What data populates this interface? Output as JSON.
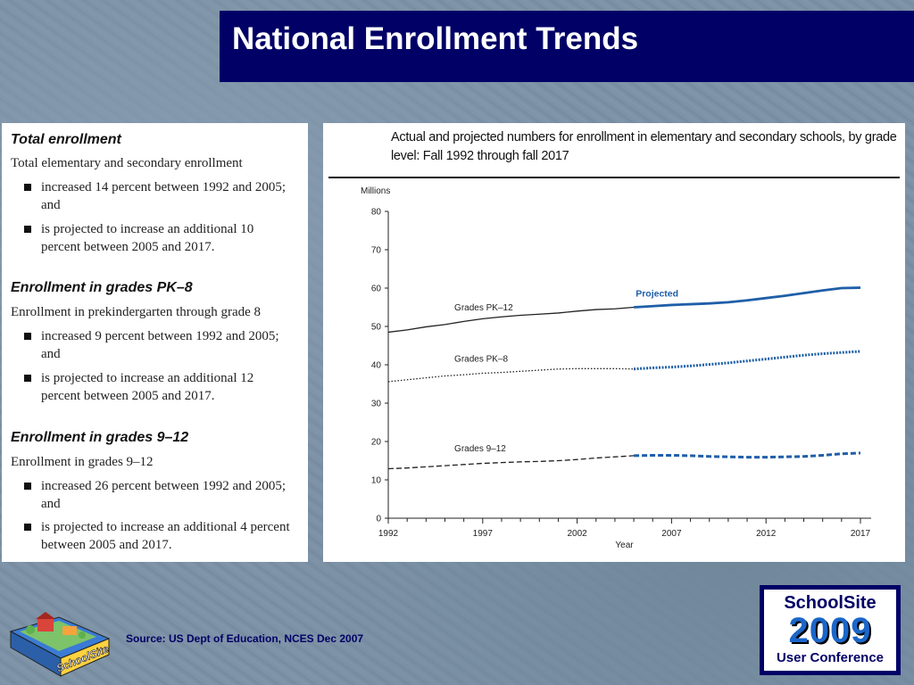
{
  "slide": {
    "title": "National Enrollment Trends",
    "source": "Source:  US Dept of Education, NCES  Dec 2007"
  },
  "left_panel": {
    "sections": [
      {
        "heading": "Total enrollment",
        "subtitle": "Total elementary and secondary enrollment",
        "bullets": [
          "increased 14 percent between 1992 and 2005; and",
          "is projected to increase an additional 10 percent between 2005 and 2017."
        ]
      },
      {
        "heading": "Enrollment in grades PK–8",
        "subtitle": "Enrollment in prekindergarten through grade 8",
        "bullets": [
          "increased 9 percent between 1992 and 2005; and",
          "is projected to increase an additional 12 percent between 2005 and 2017."
        ]
      },
      {
        "heading": "Enrollment in grades 9–12",
        "subtitle": "Enrollment in grades 9–12",
        "bullets": [
          "increased 26 percent between 1992 and 2005; and",
          "is projected to increase an additional 4 percent between 2005 and 2017."
        ]
      }
    ]
  },
  "logos": {
    "left_text": "SchoolSite",
    "right_top": "SchoolSite",
    "right_year": "2009",
    "right_bottom": "User Conference"
  },
  "chart_data": {
    "type": "line",
    "title": "Actual and projected numbers for enrollment in elementary and secondary schools, by grade level: Fall 1992 through fall 2017",
    "xlabel": "Year",
    "ylabel": "Millions",
    "xlim": [
      1992,
      2017
    ],
    "ylim": [
      0,
      80
    ],
    "x_ticks": [
      1992,
      1997,
      2002,
      2007,
      2012,
      2017
    ],
    "y_ticks": [
      0,
      10,
      20,
      30,
      40,
      50,
      60,
      70,
      80
    ],
    "projected_label": "Projected",
    "projection_start": 2005,
    "colors": {
      "actual": "#222222",
      "projected": "#1f5fa8"
    },
    "x": [
      1992,
      1993,
      1994,
      1995,
      1996,
      1997,
      1998,
      1999,
      2000,
      2001,
      2002,
      2003,
      2004,
      2005,
      2006,
      2007,
      2008,
      2009,
      2010,
      2011,
      2012,
      2013,
      2014,
      2015,
      2016,
      2017
    ],
    "series": [
      {
        "name": "Grades PK–12",
        "style": "solid",
        "values": [
          48.5,
          49.1,
          49.9,
          50.5,
          51.3,
          52.0,
          52.5,
          52.9,
          53.2,
          53.5,
          54.0,
          54.4,
          54.6,
          55.0,
          55.3,
          55.6,
          55.8,
          56.0,
          56.3,
          56.8,
          57.4,
          58.0,
          58.7,
          59.4,
          60.0,
          60.1
        ]
      },
      {
        "name": "Grades PK–8",
        "style": "dotted",
        "values": [
          35.6,
          36.1,
          36.6,
          37.1,
          37.4,
          37.8,
          38.0,
          38.3,
          38.6,
          38.9,
          39.0,
          39.0,
          39.0,
          38.9,
          39.2,
          39.4,
          39.7,
          40.1,
          40.5,
          41.0,
          41.5,
          42.0,
          42.5,
          42.9,
          43.2,
          43.5
        ]
      },
      {
        "name": "Grades 9–12",
        "style": "dashed",
        "values": [
          12.9,
          13.1,
          13.4,
          13.7,
          14.0,
          14.3,
          14.5,
          14.7,
          14.8,
          15.0,
          15.3,
          15.7,
          16.0,
          16.3,
          16.4,
          16.4,
          16.3,
          16.1,
          16.0,
          15.9,
          15.9,
          16.0,
          16.1,
          16.4,
          16.8,
          17.0
        ]
      }
    ]
  }
}
